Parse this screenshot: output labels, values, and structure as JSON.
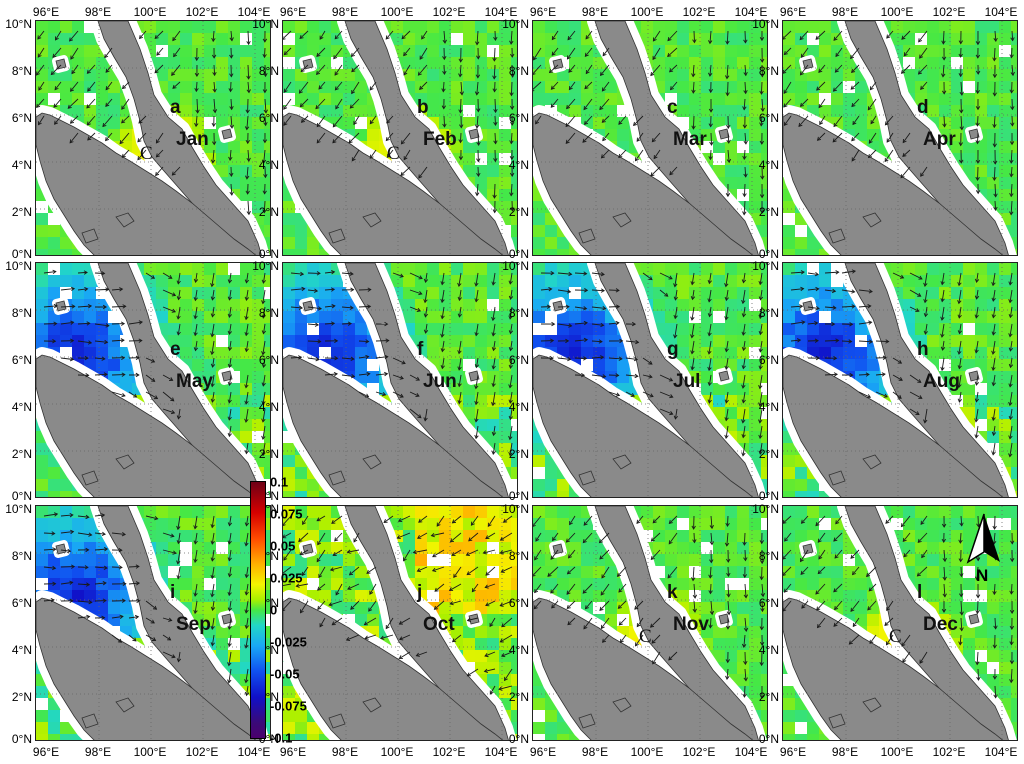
{
  "panels": [
    {
      "letter": "a",
      "month": "Jan",
      "c": true,
      "regime": "ne"
    },
    {
      "letter": "b",
      "month": "Feb",
      "c": true,
      "regime": "ne"
    },
    {
      "letter": "c",
      "month": "Mar",
      "c": false,
      "regime": "ne"
    },
    {
      "letter": "d",
      "month": "Apr",
      "c": false,
      "regime": "ne"
    },
    {
      "letter": "e",
      "month": "May",
      "c": false,
      "regime": "sw"
    },
    {
      "letter": "f",
      "month": "Jun",
      "c": false,
      "regime": "sw"
    },
    {
      "letter": "g",
      "month": "Jul",
      "c": false,
      "regime": "sw"
    },
    {
      "letter": "h",
      "month": "Aug",
      "c": false,
      "regime": "sw"
    },
    {
      "letter": "i",
      "month": "Sep",
      "c": false,
      "regime": "sw"
    },
    {
      "letter": "j",
      "month": "Oct",
      "c": false,
      "regime": "tr"
    },
    {
      "letter": "k",
      "month": "Nov",
      "c": true,
      "regime": "ne"
    },
    {
      "letter": "l",
      "month": "Dec",
      "c": true,
      "regime": "ne"
    }
  ],
  "c_mark": "C",
  "x_ticks": [
    "96°E",
    "98°E",
    "100°E",
    "102°E",
    "104°E"
  ],
  "y_ticks": [
    "10°N",
    "8°N",
    "6°N",
    "4°N",
    "2°N",
    "0°N"
  ],
  "colorbar": {
    "labels": [
      "0.1",
      "0.075",
      "0.05",
      "0.025",
      "0",
      "-0.025",
      "-0.05",
      "-0.075",
      "-0.1"
    ],
    "min": -0.1,
    "max": 0.1
  },
  "north_label": "N",
  "colors": {
    "land": "#8a8a8a",
    "coast": "#ffffff",
    "ocean_bg": "#ffffff",
    "arrow": "#1a1a1a"
  }
}
